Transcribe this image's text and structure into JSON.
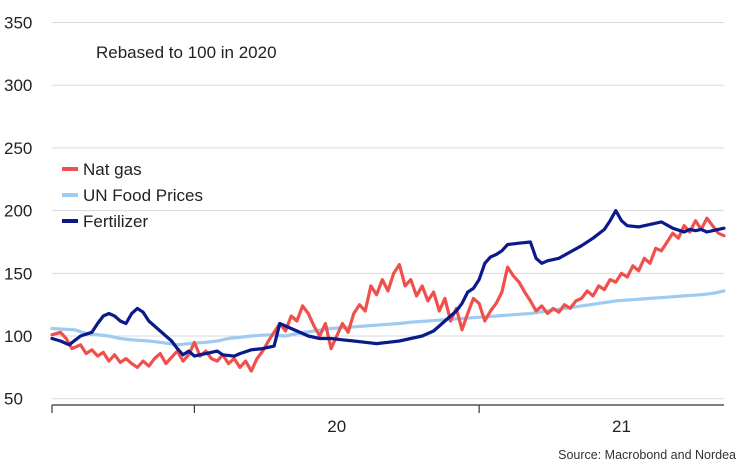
{
  "chart_data": {
    "type": "line",
    "annotation": "Rebased to 100 in 2020",
    "source": "Source: Macrobond and Nordea",
    "ylim": [
      45,
      360
    ],
    "y_ticks": [
      50,
      100,
      150,
      200,
      250,
      300,
      350
    ],
    "x_ticks": [
      {
        "label": "20",
        "x": 2020.5
      },
      {
        "label": "21",
        "x": 2021.5
      }
    ],
    "x_dividers": [
      2020.0,
      2021.0
    ],
    "xlim": [
      2019.5,
      2021.86
    ],
    "grid": true,
    "legend_position": "left",
    "series": [
      {
        "name": "Nat gas",
        "color": "#f0504c",
        "points": [
          [
            2019.5,
            101
          ],
          [
            2019.53,
            103
          ],
          [
            2019.55,
            98
          ],
          [
            2019.57,
            90
          ],
          [
            2019.6,
            93
          ],
          [
            2019.62,
            86
          ],
          [
            2019.64,
            89
          ],
          [
            2019.66,
            84
          ],
          [
            2019.68,
            87
          ],
          [
            2019.7,
            80
          ],
          [
            2019.72,
            85
          ],
          [
            2019.74,
            79
          ],
          [
            2019.76,
            82
          ],
          [
            2019.78,
            78
          ],
          [
            2019.8,
            75
          ],
          [
            2019.82,
            80
          ],
          [
            2019.84,
            76
          ],
          [
            2019.86,
            82
          ],
          [
            2019.88,
            86
          ],
          [
            2019.9,
            78
          ],
          [
            2019.92,
            83
          ],
          [
            2019.94,
            88
          ],
          [
            2019.96,
            80
          ],
          [
            2019.98,
            85
          ],
          [
            2020.0,
            95
          ],
          [
            2020.02,
            84
          ],
          [
            2020.04,
            88
          ],
          [
            2020.06,
            82
          ],
          [
            2020.08,
            80
          ],
          [
            2020.1,
            85
          ],
          [
            2020.12,
            78
          ],
          [
            2020.14,
            82
          ],
          [
            2020.16,
            75
          ],
          [
            2020.18,
            80
          ],
          [
            2020.2,
            72
          ],
          [
            2020.22,
            82
          ],
          [
            2020.24,
            88
          ],
          [
            2020.26,
            96
          ],
          [
            2020.28,
            103
          ],
          [
            2020.3,
            110
          ],
          [
            2020.32,
            104
          ],
          [
            2020.34,
            116
          ],
          [
            2020.36,
            112
          ],
          [
            2020.38,
            124
          ],
          [
            2020.4,
            118
          ],
          [
            2020.42,
            108
          ],
          [
            2020.44,
            100
          ],
          [
            2020.46,
            110
          ],
          [
            2020.48,
            90
          ],
          [
            2020.5,
            100
          ],
          [
            2020.52,
            110
          ],
          [
            2020.54,
            103
          ],
          [
            2020.56,
            118
          ],
          [
            2020.58,
            125
          ],
          [
            2020.6,
            120
          ],
          [
            2020.62,
            140
          ],
          [
            2020.64,
            133
          ],
          [
            2020.66,
            145
          ],
          [
            2020.68,
            136
          ],
          [
            2020.7,
            150
          ],
          [
            2020.72,
            157
          ],
          [
            2020.74,
            140
          ],
          [
            2020.76,
            145
          ],
          [
            2020.78,
            132
          ],
          [
            2020.8,
            140
          ],
          [
            2020.82,
            128
          ],
          [
            2020.84,
            135
          ],
          [
            2020.86,
            120
          ],
          [
            2020.88,
            130
          ],
          [
            2020.9,
            112
          ],
          [
            2020.92,
            122
          ],
          [
            2020.94,
            105
          ],
          [
            2020.96,
            118
          ],
          [
            2020.98,
            130
          ],
          [
            2021.0,
            126
          ],
          [
            2021.02,
            112
          ],
          [
            2021.04,
            120
          ],
          [
            2021.06,
            126
          ],
          [
            2021.08,
            135
          ],
          [
            2021.1,
            155
          ],
          [
            2021.12,
            148
          ],
          [
            2021.14,
            143
          ],
          [
            2021.16,
            135
          ],
          [
            2021.18,
            128
          ],
          [
            2021.2,
            120
          ],
          [
            2021.22,
            124
          ],
          [
            2021.24,
            118
          ],
          [
            2021.26,
            122
          ],
          [
            2021.28,
            119
          ],
          [
            2021.3,
            125
          ],
          [
            2021.32,
            122
          ],
          [
            2021.34,
            128
          ],
          [
            2021.36,
            130
          ],
          [
            2021.38,
            136
          ],
          [
            2021.4,
            132
          ],
          [
            2021.42,
            140
          ],
          [
            2021.44,
            137
          ],
          [
            2021.46,
            145
          ],
          [
            2021.48,
            143
          ],
          [
            2021.5,
            150
          ],
          [
            2021.52,
            147
          ],
          [
            2021.54,
            156
          ],
          [
            2021.56,
            152
          ],
          [
            2021.58,
            162
          ],
          [
            2021.6,
            158
          ],
          [
            2021.62,
            170
          ],
          [
            2021.64,
            168
          ],
          [
            2021.66,
            175
          ],
          [
            2021.68,
            182
          ],
          [
            2021.7,
            178
          ],
          [
            2021.72,
            188
          ],
          [
            2021.74,
            183
          ],
          [
            2021.76,
            192
          ],
          [
            2021.78,
            185
          ],
          [
            2021.8,
            194
          ],
          [
            2021.82,
            188
          ],
          [
            2021.84,
            182
          ],
          [
            2021.86,
            180
          ]
        ]
      },
      {
        "name": "UN Food Prices",
        "color": "#9ecbf0",
        "points": [
          [
            2019.5,
            106
          ],
          [
            2019.58,
            105
          ],
          [
            2019.62,
            102
          ],
          [
            2019.7,
            100
          ],
          [
            2019.74,
            98
          ],
          [
            2019.78,
            97
          ],
          [
            2019.84,
            96
          ],
          [
            2019.88,
            95
          ],
          [
            2019.94,
            93
          ],
          [
            2019.98,
            94
          ],
          [
            2020.04,
            95
          ],
          [
            2020.08,
            96
          ],
          [
            2020.12,
            98
          ],
          [
            2020.2,
            100
          ],
          [
            2020.26,
            101
          ],
          [
            2020.32,
            100
          ],
          [
            2020.36,
            102
          ],
          [
            2020.42,
            104
          ],
          [
            2020.48,
            106
          ],
          [
            2020.54,
            107
          ],
          [
            2020.6,
            108
          ],
          [
            2020.66,
            109
          ],
          [
            2020.72,
            110
          ],
          [
            2020.76,
            111
          ],
          [
            2020.82,
            112
          ],
          [
            2020.88,
            113
          ],
          [
            2020.94,
            114
          ],
          [
            2021.0,
            115
          ],
          [
            2021.06,
            116
          ],
          [
            2021.12,
            117
          ],
          [
            2021.18,
            118
          ],
          [
            2021.24,
            120
          ],
          [
            2021.3,
            122
          ],
          [
            2021.36,
            124
          ],
          [
            2021.42,
            126
          ],
          [
            2021.48,
            128
          ],
          [
            2021.54,
            129
          ],
          [
            2021.6,
            130
          ],
          [
            2021.66,
            131
          ],
          [
            2021.72,
            132
          ],
          [
            2021.78,
            133
          ],
          [
            2021.82,
            134
          ],
          [
            2021.86,
            136
          ]
        ]
      },
      {
        "name": "Fertilizer",
        "color": "#0a1a8a",
        "points": [
          [
            2019.5,
            98
          ],
          [
            2019.53,
            96
          ],
          [
            2019.56,
            93
          ],
          [
            2019.6,
            100
          ],
          [
            2019.64,
            103
          ],
          [
            2019.66,
            110
          ],
          [
            2019.68,
            116
          ],
          [
            2019.7,
            118
          ],
          [
            2019.72,
            116
          ],
          [
            2019.74,
            112
          ],
          [
            2019.76,
            110
          ],
          [
            2019.78,
            118
          ],
          [
            2019.8,
            122
          ],
          [
            2019.82,
            119
          ],
          [
            2019.84,
            112
          ],
          [
            2019.86,
            108
          ],
          [
            2019.88,
            104
          ],
          [
            2019.9,
            100
          ],
          [
            2019.92,
            96
          ],
          [
            2019.94,
            90
          ],
          [
            2019.96,
            85
          ],
          [
            2019.98,
            88
          ],
          [
            2020.0,
            84
          ],
          [
            2020.04,
            86
          ],
          [
            2020.08,
            88
          ],
          [
            2020.1,
            85
          ],
          [
            2020.14,
            84
          ],
          [
            2020.16,
            86
          ],
          [
            2020.2,
            89
          ],
          [
            2020.24,
            90
          ],
          [
            2020.28,
            92
          ],
          [
            2020.3,
            110
          ],
          [
            2020.32,
            108
          ],
          [
            2020.36,
            104
          ],
          [
            2020.4,
            100
          ],
          [
            2020.44,
            98
          ],
          [
            2020.48,
            98
          ],
          [
            2020.52,
            97
          ],
          [
            2020.56,
            96
          ],
          [
            2020.6,
            95
          ],
          [
            2020.64,
            94
          ],
          [
            2020.68,
            95
          ],
          [
            2020.72,
            96
          ],
          [
            2020.76,
            98
          ],
          [
            2020.8,
            100
          ],
          [
            2020.84,
            104
          ],
          [
            2020.86,
            108
          ],
          [
            2020.88,
            112
          ],
          [
            2020.9,
            116
          ],
          [
            2020.92,
            120
          ],
          [
            2020.94,
            126
          ],
          [
            2020.96,
            135
          ],
          [
            2020.98,
            138
          ],
          [
            2021.0,
            145
          ],
          [
            2021.02,
            158
          ],
          [
            2021.04,
            163
          ],
          [
            2021.06,
            165
          ],
          [
            2021.08,
            168
          ],
          [
            2021.1,
            173
          ],
          [
            2021.14,
            174
          ],
          [
            2021.18,
            175
          ],
          [
            2021.2,
            162
          ],
          [
            2021.22,
            158
          ],
          [
            2021.24,
            160
          ],
          [
            2021.28,
            162
          ],
          [
            2021.32,
            167
          ],
          [
            2021.36,
            172
          ],
          [
            2021.4,
            178
          ],
          [
            2021.44,
            185
          ],
          [
            2021.46,
            192
          ],
          [
            2021.48,
            200
          ],
          [
            2021.5,
            192
          ],
          [
            2021.52,
            188
          ],
          [
            2021.56,
            187
          ],
          [
            2021.6,
            189
          ],
          [
            2021.64,
            191
          ],
          [
            2021.68,
            186
          ],
          [
            2021.72,
            183
          ],
          [
            2021.74,
            185
          ],
          [
            2021.76,
            184
          ],
          [
            2021.78,
            185
          ],
          [
            2021.8,
            183
          ],
          [
            2021.82,
            184
          ],
          [
            2021.84,
            185
          ],
          [
            2021.86,
            186
          ]
        ]
      }
    ]
  }
}
